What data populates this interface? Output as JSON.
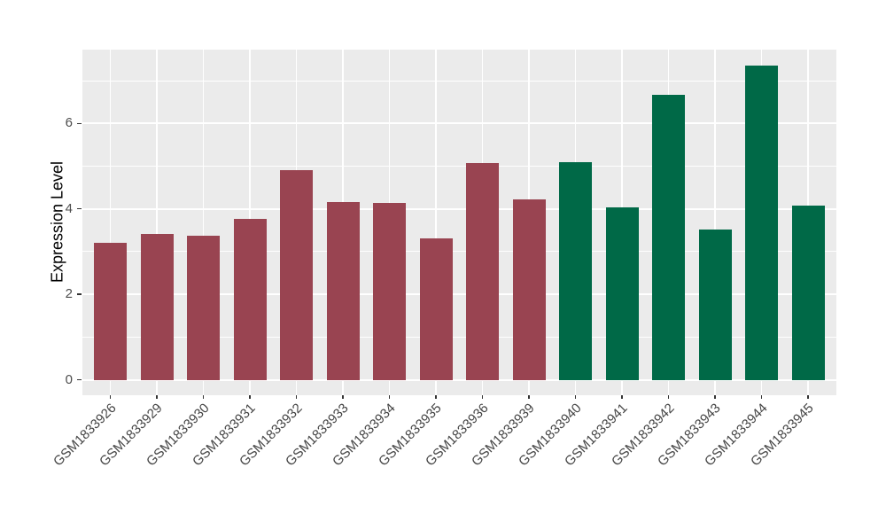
{
  "chart_data": {
    "type": "bar",
    "title": "",
    "ylabel": "Expression Level",
    "xlabel": "",
    "categories": [
      "GSM1833926",
      "GSM1833929",
      "GSM1833930",
      "GSM1833931",
      "GSM1833932",
      "GSM1833933",
      "GSM1833934",
      "GSM1833935",
      "GSM1833936",
      "GSM1833939",
      "GSM1833940",
      "GSM1833941",
      "GSM1833942",
      "GSM1833943",
      "GSM1833944",
      "GSM1833945"
    ],
    "values": [
      3.2,
      3.42,
      3.38,
      3.77,
      4.91,
      4.15,
      4.14,
      3.3,
      5.08,
      4.23,
      5.1,
      4.03,
      6.68,
      3.52,
      7.36,
      4.08
    ],
    "bar_colors": [
      "#994451",
      "#994451",
      "#994451",
      "#994451",
      "#994451",
      "#994451",
      "#994451",
      "#994451",
      "#994451",
      "#994451",
      "#006947",
      "#006947",
      "#006947",
      "#006947",
      "#006947",
      "#006947"
    ],
    "group_colors": {
      "group1": "#994451",
      "group2": "#006947"
    },
    "yticks": [
      0,
      2,
      4,
      6
    ],
    "minor_gridlines": [
      1,
      3,
      5,
      7
    ],
    "ylim": [
      -0.37,
      7.73
    ],
    "grid": "on",
    "legend_position": "none",
    "panel_background": "#EBEBEB",
    "gridline_color": "#FFFFFF",
    "tick_color": "#333333",
    "axis_text_color": "#4D4D4D"
  }
}
